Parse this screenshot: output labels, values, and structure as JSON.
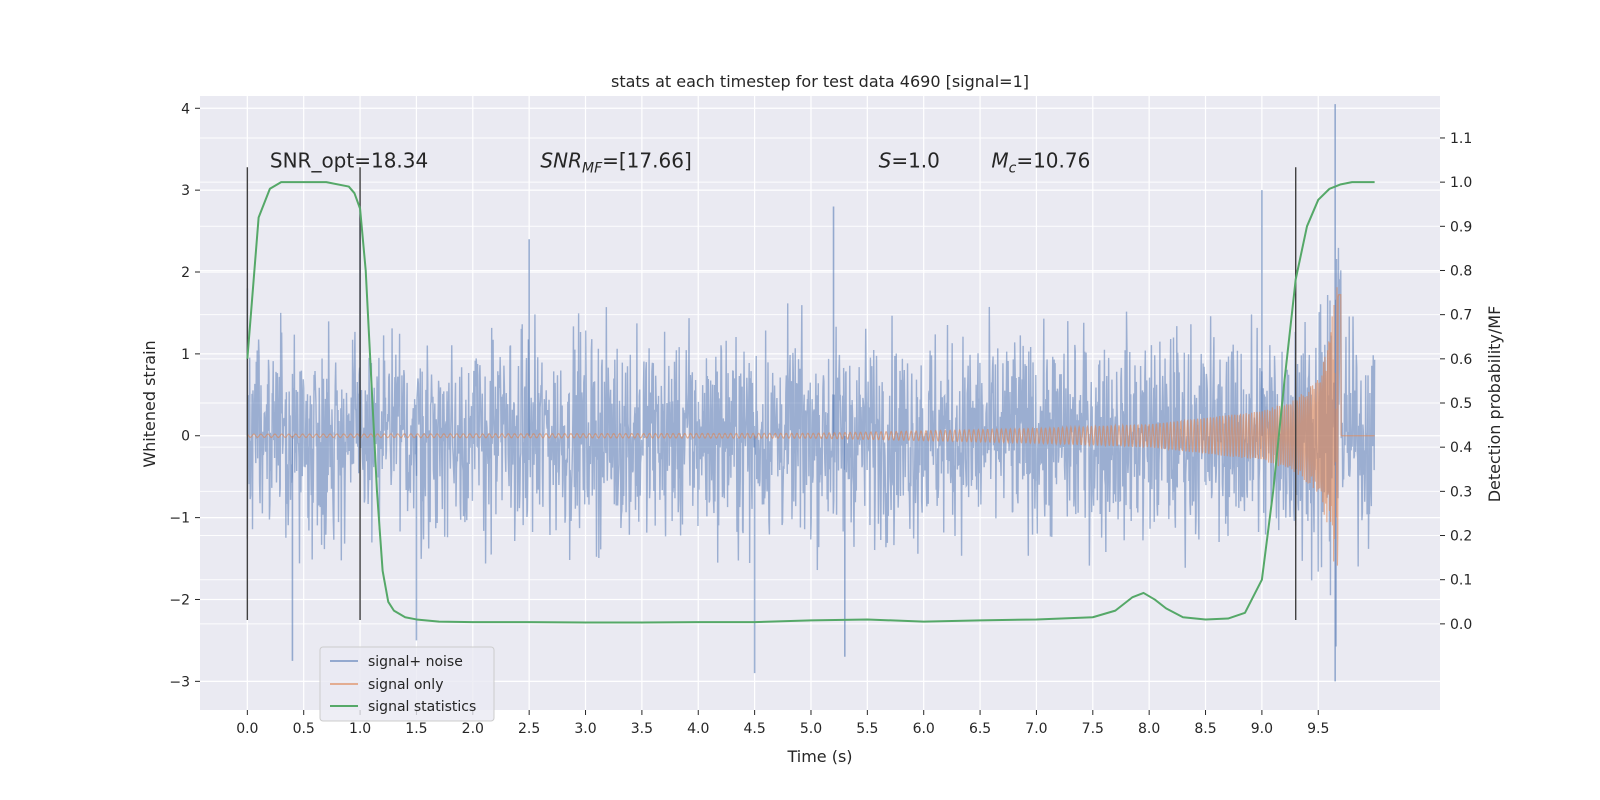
{
  "chart_data": {
    "type": "line",
    "title": "stats at each timestep for test data 4690 [signal=1]",
    "xlabel": "Time (s)",
    "ylabel": "Whitened strain",
    "ylabel_right": "Detection probability/MF",
    "xlim": [
      -0.42,
      10.58
    ],
    "ylim": [
      -3.35,
      4.15
    ],
    "ylim_right": [
      -0.195,
      1.195
    ],
    "x_ticks": [
      "0.0",
      "0.5",
      "1.0",
      "1.5",
      "2.0",
      "2.5",
      "3.0",
      "3.5",
      "4.0",
      "4.5",
      "5.0",
      "5.5",
      "6.0",
      "6.5",
      "7.0",
      "7.5",
      "8.0",
      "8.5",
      "9.0",
      "9.5"
    ],
    "y_ticks": [
      "−3",
      "−2",
      "−1",
      "0",
      "1",
      "2",
      "3",
      "4"
    ],
    "y_ticks_right": [
      "0.0",
      "0.1",
      "0.2",
      "0.3",
      "0.4",
      "0.5",
      "0.6",
      "0.7",
      "0.8",
      "0.9",
      "1.0",
      "1.1"
    ],
    "grid": true,
    "legend_position": "lower-left",
    "colors": {
      "background": "#eaeaf2",
      "noise": "#4c72b0",
      "signal": "#dd8452",
      "statistic": "#55a868",
      "vline": "#404040"
    },
    "series": [
      {
        "name": "signal+ noise",
        "kind": "noise-band",
        "x_range": [
          0.0,
          10.0
        ],
        "typical_band": [
          -1.1,
          1.1
        ],
        "envelope_peaks": [
          [
            0.0,
            1.8
          ],
          [
            0.4,
            -2.75
          ],
          [
            1.0,
            2.8
          ],
          [
            1.5,
            -2.5
          ],
          [
            2.5,
            2.4
          ],
          [
            4.5,
            -2.9
          ],
          [
            5.2,
            2.8
          ],
          [
            5.3,
            -2.7
          ],
          [
            9.0,
            3.0
          ],
          [
            9.65,
            4.05
          ],
          [
            9.65,
            -3.0
          ]
        ]
      },
      {
        "name": "signal only",
        "kind": "chirp",
        "t_merger": 9.68,
        "envelope": [
          [
            0.0,
            0.02
          ],
          [
            5.0,
            0.03
          ],
          [
            6.0,
            0.06
          ],
          [
            7.0,
            0.09
          ],
          [
            8.0,
            0.14
          ],
          [
            8.5,
            0.22
          ],
          [
            9.0,
            0.3
          ],
          [
            9.3,
            0.45
          ],
          [
            9.5,
            0.7
          ],
          [
            9.6,
            1.2
          ],
          [
            9.68,
            2.1
          ]
        ]
      },
      {
        "name": "signal statistics",
        "kind": "line",
        "axis": "right",
        "x": [
          0.0,
          0.1,
          0.2,
          0.3,
          0.5,
          0.7,
          0.9,
          0.95,
          1.0,
          1.05,
          1.1,
          1.15,
          1.2,
          1.25,
          1.3,
          1.4,
          1.5,
          1.7,
          2.0,
          2.5,
          3.0,
          3.5,
          4.0,
          4.5,
          5.0,
          5.5,
          6.0,
          6.5,
          7.0,
          7.5,
          7.7,
          7.85,
          7.95,
          8.05,
          8.15,
          8.3,
          8.5,
          8.7,
          8.85,
          9.0,
          9.1,
          9.2,
          9.3,
          9.4,
          9.5,
          9.6,
          9.7,
          9.8,
          10.0
        ],
        "values": [
          0.6,
          0.92,
          0.985,
          1.0,
          1.0,
          1.0,
          0.99,
          0.975,
          0.94,
          0.8,
          0.55,
          0.3,
          0.12,
          0.05,
          0.03,
          0.015,
          0.01,
          0.005,
          0.004,
          0.004,
          0.003,
          0.003,
          0.004,
          0.004,
          0.008,
          0.01,
          0.005,
          0.008,
          0.01,
          0.015,
          0.03,
          0.06,
          0.07,
          0.055,
          0.035,
          0.015,
          0.01,
          0.012,
          0.025,
          0.1,
          0.3,
          0.55,
          0.78,
          0.9,
          0.96,
          0.985,
          0.995,
          1.0,
          1.0
        ]
      }
    ],
    "vertical_lines": [
      0.0,
      1.0,
      9.3
    ],
    "vline_yrange": [
      -2.25,
      3.28
    ],
    "annotations": [
      {
        "text": "SNR_opt=18.34",
        "x": 0.2,
        "y": 3.35
      },
      {
        "text": "SNR",
        "sub": "MF",
        "suffix": "=[17.66]",
        "italic": true,
        "x": 2.6,
        "y": 3.35
      },
      {
        "text": "S",
        "sub": "",
        "suffix": "=1.0",
        "italic": true,
        "x": 5.6,
        "y": 3.35
      },
      {
        "text": "M",
        "sub": "c",
        "suffix": "=10.76",
        "italic": true,
        "x": 6.6,
        "y": 3.35
      }
    ]
  }
}
